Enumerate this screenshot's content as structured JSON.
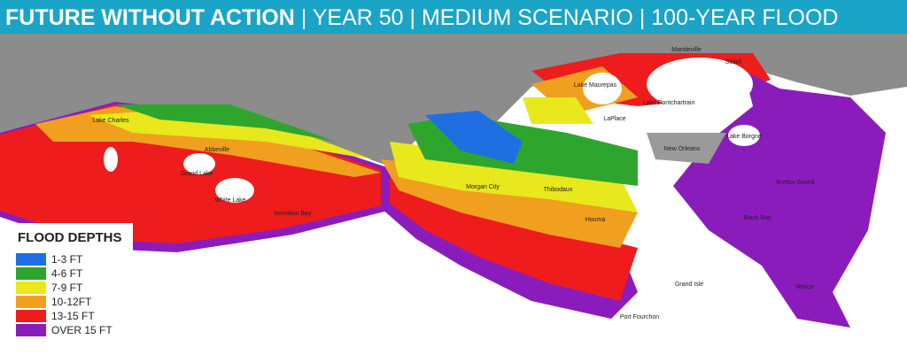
{
  "header": {
    "title_lead": "FUTURE WITHOUT ACTION",
    "title_rest": "| YEAR 50 | MEDIUM SCENARIO | 100-YEAR FLOOD"
  },
  "legend": {
    "title": "FLOOD DEPTHS",
    "items": [
      {
        "label": "1-3 FT",
        "color": "#1f6fe3"
      },
      {
        "label": "4-6 FT",
        "color": "#2ea62e"
      },
      {
        "label": "7-9 FT",
        "color": "#e8e81c"
      },
      {
        "label": "10-12FT",
        "color": "#f0a01e"
      },
      {
        "label": "13-15 FT",
        "color": "#ee1c1c"
      },
      {
        "label": "OVER 15 FT",
        "color": "#8b1cbc"
      }
    ]
  },
  "places": [
    "Mandeville",
    "Slidell",
    "Lake Maurepas",
    "LaPlace",
    "Lake Pontchartrain",
    "New Orleans",
    "Lake Borgne",
    "Lake Charles",
    "Abbeville",
    "White Lake",
    "Grand Lake",
    "Vermilion Bay",
    "Morgan City",
    "Thibodaux",
    "Houma",
    "Grand Isle",
    "Port Fourchon",
    "Venice",
    "Black Bay",
    "Breton Sound"
  ]
}
